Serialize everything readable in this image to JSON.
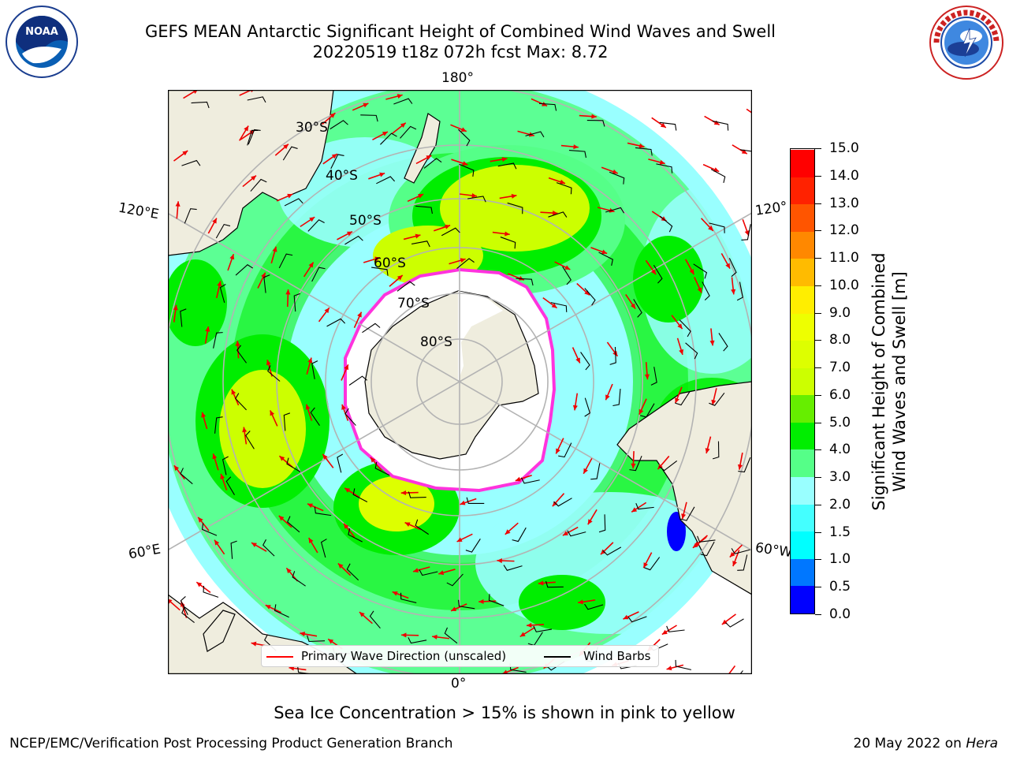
{
  "header": {
    "title_line1": "GEFS MEAN Antarctic Significant Height of Combined Wind Waves and Swell",
    "title_line2": "20220519 t18z 072h fcst   Max: 8.72"
  },
  "logos": {
    "left": {
      "name": "NOAA",
      "text": "NOAA",
      "ring_text": "NATIONAL OCEANIC AND ATMOSPHERIC ADMINISTRATION · U.S. DEPARTMENT OF COMMERCE"
    },
    "right": {
      "name": "National Weather Service",
      "ring_text": "NATIONAL WEATHER SERVICE"
    }
  },
  "map": {
    "projection": "south polar stereographic",
    "lon_labels": [
      "180°",
      "120°E",
      "120°",
      "60°E",
      "60°W",
      "0°"
    ],
    "lat_labels": [
      "30°S",
      "40°S",
      "50°S",
      "60°S",
      "70°S",
      "80°S"
    ],
    "colors": {
      "land": "#efedde",
      "ice": "#ffffff",
      "ice_edge": "#ff33dd",
      "grid": "#b3b3b3",
      "arrow": "#ee0000",
      "barb": "#000000"
    }
  },
  "colorbar": {
    "label_line1": "Significant Height of Combined",
    "label_line2": "Wind Waves and Swell [m]",
    "ticks": [
      "0.0",
      "0.5",
      "1.0",
      "1.5",
      "2.0",
      "3.0",
      "4.0",
      "5.0",
      "6.0",
      "7.0",
      "8.0",
      "9.0",
      "10.0",
      "11.0",
      "12.0",
      "13.0",
      "14.0",
      "15.0"
    ],
    "colors": [
      "#0000ff",
      "#0077ff",
      "#00ffff",
      "#44ffff",
      "#99ffff",
      "#55ff88",
      "#00ee00",
      "#66ee00",
      "#ccff00",
      "#ddff00",
      "#eeff00",
      "#ffee00",
      "#ffbb00",
      "#ff8800",
      "#ff5500",
      "#ff2200",
      "#ff0000"
    ]
  },
  "legend": {
    "items": [
      {
        "label": "Primary Wave Direction (unscaled)",
        "color": "#ff0000"
      },
      {
        "label": "Wind Barbs",
        "color": "#000000"
      }
    ]
  },
  "note": "Sea Ice Concentration > 15% is shown in pink to yellow",
  "footer": {
    "left": "NCEP/EMC/Verification Post Processing Product Generation Branch",
    "right_prefix": "20 May 2022 on ",
    "right_host": "Hera"
  }
}
